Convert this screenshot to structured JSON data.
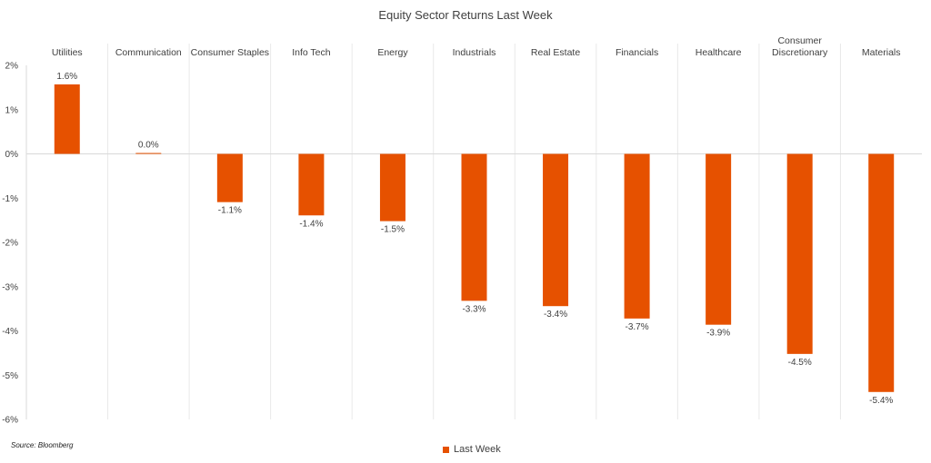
{
  "chart_data": {
    "type": "bar",
    "title": "Equity Sector Returns Last Week",
    "categories": [
      "Utilities",
      "Communication",
      "Consumer Staples",
      "Info Tech",
      "Energy",
      "Industrials",
      "Real Estate",
      "Financials",
      "Healthcare",
      "Consumer Discretionary",
      "Materials"
    ],
    "category_lines": [
      [
        "Utilities"
      ],
      [
        "Communication"
      ],
      [
        "Consumer Staples"
      ],
      [
        "Info Tech"
      ],
      [
        "Energy"
      ],
      [
        "Industrials"
      ],
      [
        "Real Estate"
      ],
      [
        "Financials"
      ],
      [
        "Healthcare"
      ],
      [
        "Consumer",
        "Discretionary"
      ],
      [
        "Materials"
      ]
    ],
    "series": [
      {
        "name": "Last Week",
        "values": [
          1.57,
          0.02,
          -1.09,
          -1.39,
          -1.52,
          -3.32,
          -3.44,
          -3.72,
          -3.86,
          -4.52,
          -5.38
        ],
        "labels": [
          "1.6%",
          "0.0%",
          "-1.1%",
          "-1.4%",
          "-1.5%",
          "-3.3%",
          "-3.4%",
          "-3.7%",
          "-3.9%",
          "-4.5%",
          "-5.4%"
        ],
        "color": "#E65100"
      }
    ],
    "ylim": [
      -6,
      2
    ],
    "yticks": [
      2,
      1,
      0,
      -1,
      -2,
      -3,
      -4,
      -5,
      -6
    ],
    "ytick_labels": [
      "2%",
      "1%",
      "0%",
      "-1%",
      "-2%",
      "-3%",
      "-4%",
      "-5%",
      "-6%"
    ],
    "xlabel": "",
    "ylabel": "",
    "grid": "vertical separators",
    "category_labels_position": "top",
    "legend_position": "bottom"
  },
  "source": "Source: Bloomberg",
  "legend_label": "Last Week",
  "colors": {
    "bar": "#E65100",
    "axis": "#D9D9D9",
    "text": "#404040"
  }
}
